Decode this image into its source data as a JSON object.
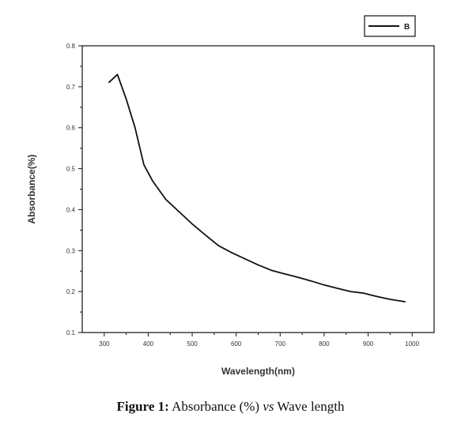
{
  "chart_data": {
    "type": "line",
    "title": "",
    "xlabel": "Wavelength(nm)",
    "ylabel": "Absorbance(%)",
    "xlim": [
      250,
      1050
    ],
    "ylim": [
      0.1,
      0.8
    ],
    "x_ticks": [
      300,
      400,
      500,
      600,
      700,
      800,
      900,
      1000
    ],
    "y_ticks": [
      0.1,
      0.2,
      0.3,
      0.4,
      0.5,
      0.6,
      0.7,
      0.8
    ],
    "grid": false,
    "legend_position": "top-right",
    "series": [
      {
        "name": "B",
        "color": "#111111",
        "x": [
          310,
          330,
          350,
          370,
          390,
          410,
          440,
          470,
          500,
          530,
          560,
          590,
          620,
          650,
          680,
          710,
          740,
          770,
          800,
          830,
          860,
          890,
          920,
          950,
          985
        ],
        "y": [
          0.71,
          0.73,
          0.67,
          0.6,
          0.51,
          0.47,
          0.425,
          0.395,
          0.365,
          0.338,
          0.312,
          0.295,
          0.28,
          0.265,
          0.252,
          0.243,
          0.235,
          0.226,
          0.216,
          0.208,
          0.2,
          0.196,
          0.188,
          0.181,
          0.175
        ]
      }
    ]
  },
  "caption": {
    "label": "Figure 1:",
    "part1": " Absorbance (%) ",
    "vs": "vs",
    "part2": " Wave length"
  }
}
